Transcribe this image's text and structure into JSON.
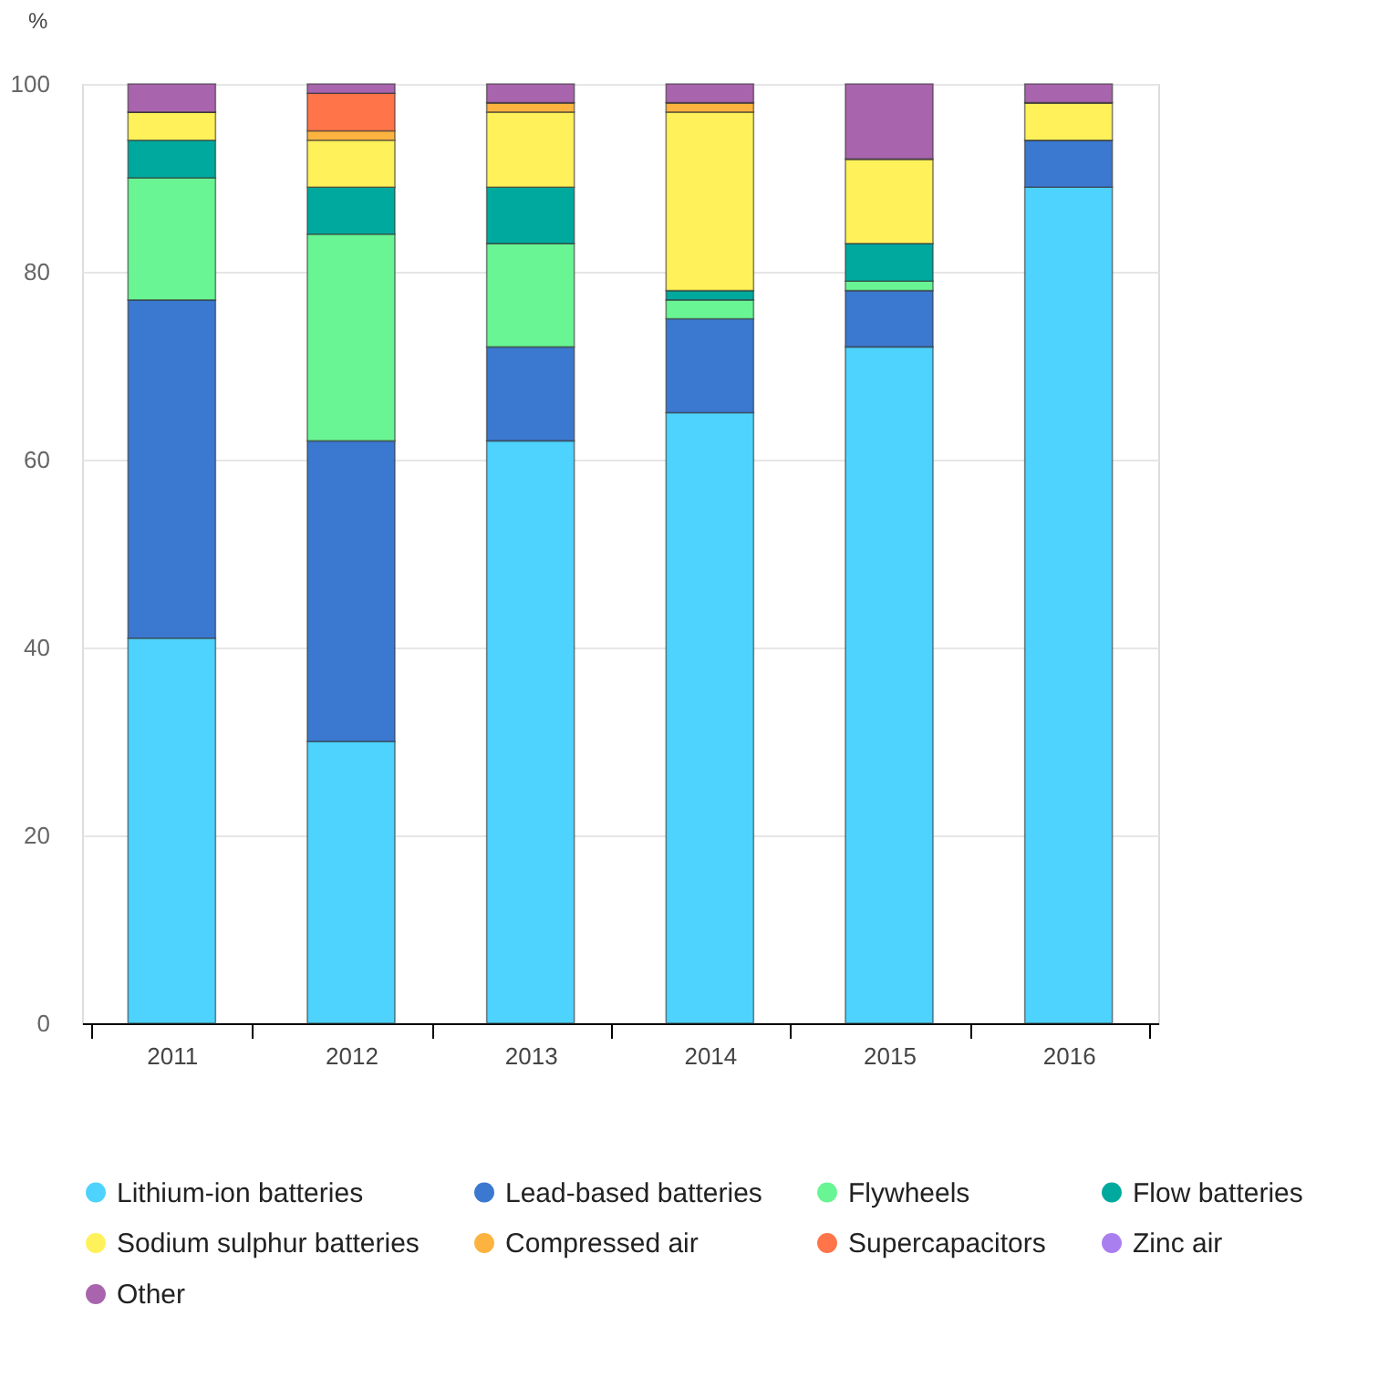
{
  "chart_data": {
    "type": "bar",
    "stacked": true,
    "ylabel": "%",
    "categories": [
      "2011",
      "2012",
      "2013",
      "2014",
      "2015",
      "2016"
    ],
    "series": [
      {
        "name": "Lithium-ion batteries",
        "color": "#4dd3fd",
        "values": [
          41,
          30,
          62,
          65,
          72,
          89
        ]
      },
      {
        "name": "Lead-based batteries",
        "color": "#3b78d0",
        "values": [
          36,
          32,
          10,
          10,
          6,
          5
        ]
      },
      {
        "name": "Flywheels",
        "color": "#69f594",
        "values": [
          13,
          22,
          11,
          2,
          1,
          0
        ]
      },
      {
        "name": "Flow batteries",
        "color": "#00a99d",
        "values": [
          4,
          5,
          6,
          1,
          4,
          0
        ]
      },
      {
        "name": "Sodium sulphur batteries",
        "color": "#fff159",
        "values": [
          3,
          5,
          8,
          19,
          9,
          4
        ]
      },
      {
        "name": "Compressed air",
        "color": "#fdb33f",
        "values": [
          0,
          1,
          1,
          1,
          0,
          0
        ]
      },
      {
        "name": "Supercapacitors",
        "color": "#ff7449",
        "values": [
          0,
          4,
          0,
          0,
          0,
          0
        ]
      },
      {
        "name": "Zinc air",
        "color": "#a97ff0",
        "values": [
          0,
          0,
          0,
          0,
          0,
          0
        ]
      },
      {
        "name": "Other",
        "color": "#a964ae",
        "values": [
          3,
          1,
          2,
          2,
          8,
          2
        ]
      }
    ],
    "ylim": [
      0,
      100
    ],
    "yticks": [
      0,
      20,
      40,
      60,
      80,
      100
    ],
    "grid": "y",
    "legend": "bottom"
  }
}
